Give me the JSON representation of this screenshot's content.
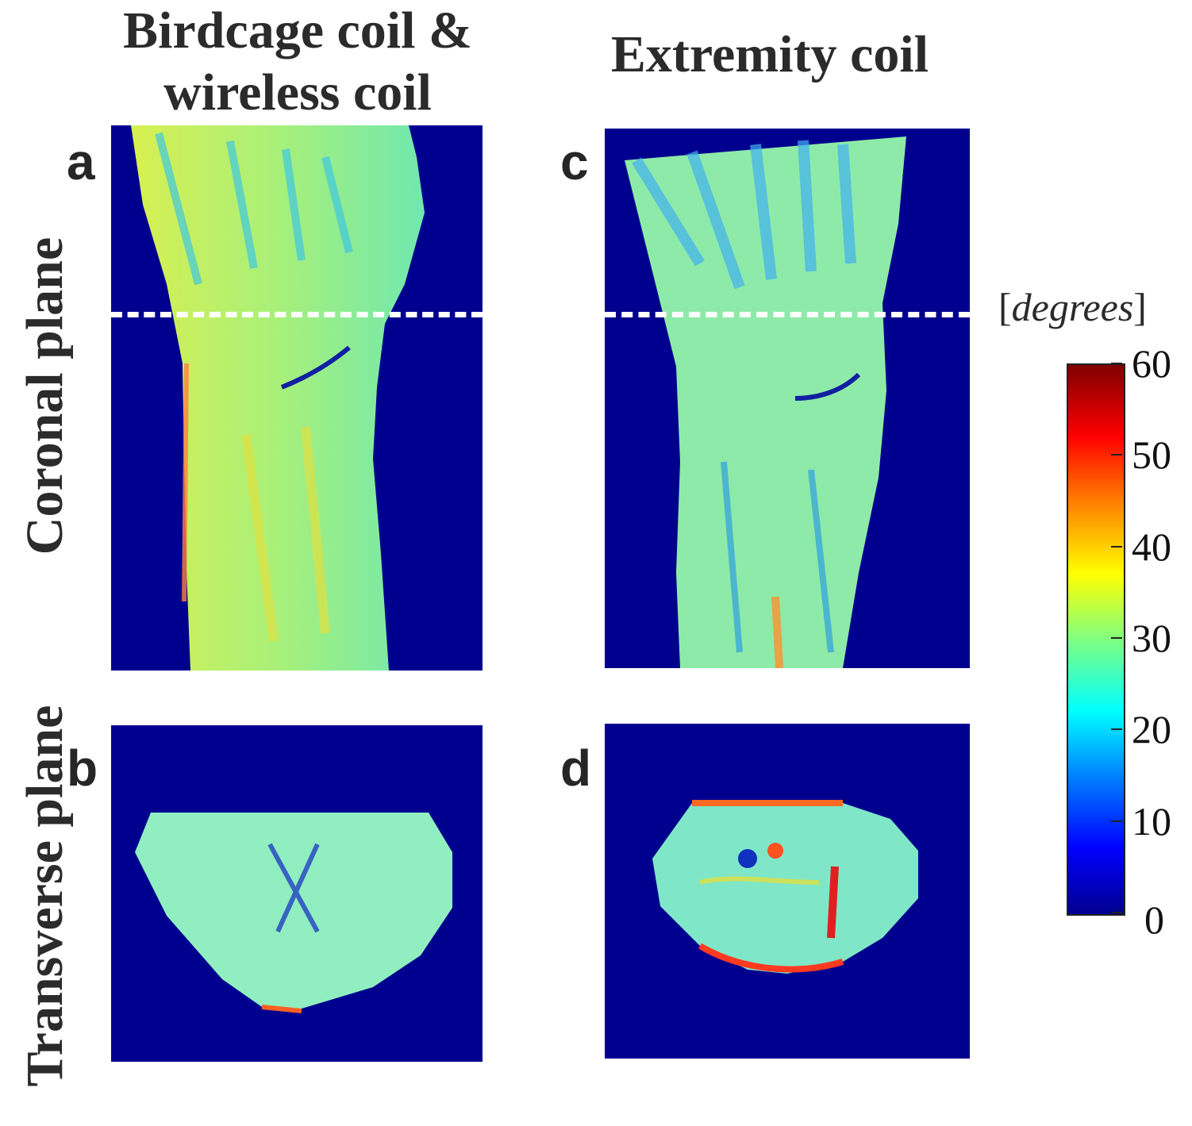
{
  "columns": {
    "left_title_line1": "Birdcage coil &",
    "left_title_line2": "wireless coil",
    "right_title": "Extremity coil"
  },
  "rows": {
    "top": "Coronal plane",
    "bottom": "Transverse plane"
  },
  "panels": {
    "a": "a",
    "b": "b",
    "c": "c",
    "d": "d"
  },
  "colorbar": {
    "unit": "degrees",
    "unit_open": "[",
    "unit_close": "]",
    "ticks": [
      "0",
      "10",
      "20",
      "30",
      "40",
      "50",
      "60"
    ],
    "range": [
      0,
      60
    ],
    "colormap": "jet",
    "background_color": "#00008f"
  }
}
